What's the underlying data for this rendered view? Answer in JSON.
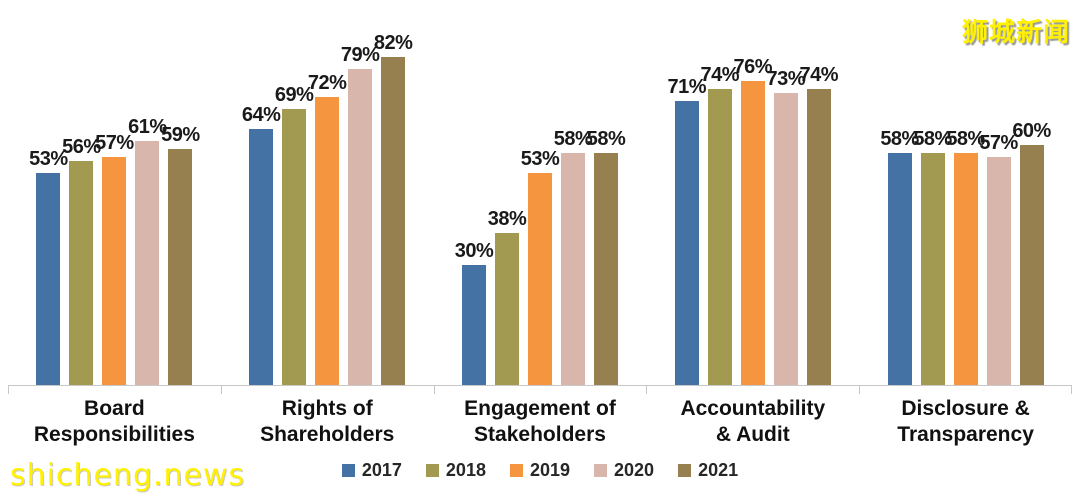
{
  "watermarks": {
    "site_text": "shicheng.news",
    "logo_text": "狮城新闻"
  },
  "colors": {
    "background": "#ffffff",
    "axis_line": "#c8c8c8",
    "value_label_text": "#1a1a1a",
    "category_label_text": "#111111",
    "legend_text": "#262626",
    "watermark_yellow": "#fff100"
  },
  "chart_data": {
    "type": "bar",
    "title": "",
    "xlabel": "",
    "ylabel": "",
    "value_suffix": "%",
    "ylim": [
      0,
      96
    ],
    "grid": false,
    "legend_position": "bottom",
    "categories": [
      "Board\nResponsibilities",
      "Rights of\nShareholders",
      "Engagement of\nStakeholders",
      "Accountability\n& Audit",
      "Disclosure &\nTransparency"
    ],
    "series": [
      {
        "name": "2017",
        "color": "#4472a4",
        "values": [
          53,
          64,
          30,
          71,
          58
        ]
      },
      {
        "name": "2018",
        "color": "#a19a50",
        "values": [
          56,
          69,
          38,
          74,
          58
        ]
      },
      {
        "name": "2019",
        "color": "#f6953f",
        "values": [
          57,
          72,
          53,
          76,
          58
        ]
      },
      {
        "name": "2020",
        "color": "#d8b6ab",
        "values": [
          61,
          79,
          58,
          73,
          57
        ]
      },
      {
        "name": "2021",
        "color": "#97804f",
        "values": [
          59,
          82,
          58,
          74,
          60
        ]
      }
    ]
  }
}
